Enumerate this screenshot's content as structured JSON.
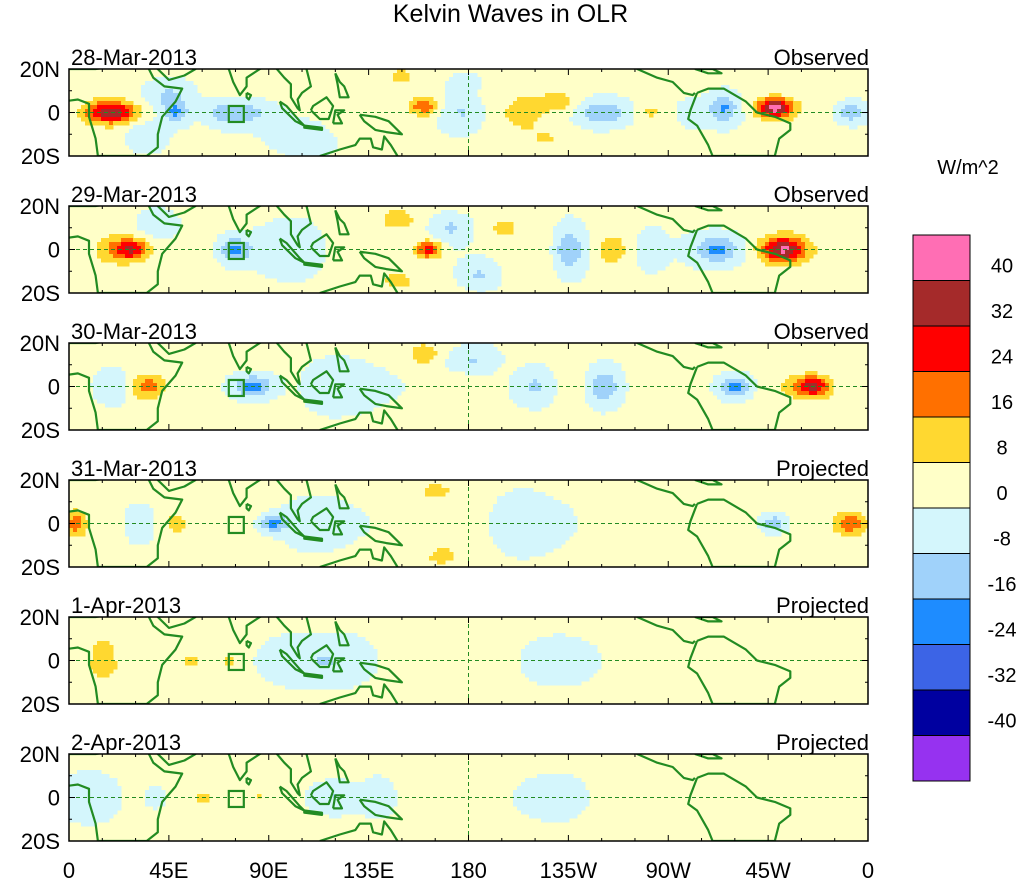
{
  "chart_data": {
    "type": "heatmap",
    "title": "Kelvin Waves in OLR",
    "xlabel": "",
    "ylabel": "",
    "x_range_deg_east": [
      0,
      360
    ],
    "y_range_deg": [
      -20,
      20
    ],
    "x_tick_labels": [
      "0",
      "45E",
      "90E",
      "135E",
      "180",
      "135W",
      "90W",
      "45W",
      "0"
    ],
    "y_tick_labels": [
      "20N",
      "0",
      "20S"
    ],
    "colorbar": {
      "unit": "W/m^2",
      "levels": [
        "40",
        "32",
        "24",
        "16",
        "8",
        "0",
        "-8",
        "-16",
        "-24",
        "-32",
        "-40"
      ],
      "colors": [
        "#ff6eb4",
        "#a52a2a",
        "#ff0000",
        "#ff7000",
        "#ffd830",
        "#ffffc8",
        "#d4f6fc",
        "#a0d2fa",
        "#1e8cff",
        "#3c64e6",
        "#0000a0",
        "#9632f0"
      ]
    },
    "panels": [
      {
        "date": "28-Mar-2013",
        "status": "Observed",
        "blobs": [
          {
            "lon": 20,
            "lat": 0,
            "sx": 10,
            "sy": 5,
            "v": 34
          },
          {
            "lon": 10,
            "lat": 0,
            "sx": 6,
            "sy": 6,
            "v": 9
          },
          {
            "lon": 35,
            "lat": -10,
            "sx": 8,
            "sy": 6,
            "v": -10
          },
          {
            "lon": 45,
            "lat": 8,
            "sx": 10,
            "sy": 6,
            "v": -11
          },
          {
            "lon": 48,
            "lat": 0,
            "sx": 6,
            "sy": 5,
            "v": -18
          },
          {
            "lon": 70,
            "lat": 0,
            "sx": 8,
            "sy": 5,
            "v": -13
          },
          {
            "lon": 82,
            "lat": 0,
            "sx": 10,
            "sy": 6,
            "v": -10
          },
          {
            "lon": 90,
            "lat": 12,
            "sx": 20,
            "sy": 6,
            "v": 4
          },
          {
            "lon": 105,
            "lat": -12,
            "sx": 14,
            "sy": 8,
            "v": -6
          },
          {
            "lon": 140,
            "lat": 0,
            "sx": 14,
            "sy": 12,
            "v": 4
          },
          {
            "lon": 150,
            "lat": 17,
            "sx": 6,
            "sy": 4,
            "v": 10
          },
          {
            "lon": 160,
            "lat": 3,
            "sx": 6,
            "sy": 4,
            "v": 22
          },
          {
            "lon": 178,
            "lat": 0,
            "sx": 10,
            "sy": 8,
            "v": -10
          },
          {
            "lon": 178,
            "lat": 14,
            "sx": 6,
            "sy": 4,
            "v": -8
          },
          {
            "lon": 192,
            "lat": 0,
            "sx": 12,
            "sy": 10,
            "v": 5
          },
          {
            "lon": 205,
            "lat": 0,
            "sx": 8,
            "sy": 8,
            "v": 10
          },
          {
            "lon": 220,
            "lat": 5,
            "sx": 10,
            "sy": 6,
            "v": 10
          },
          {
            "lon": 215,
            "lat": -12,
            "sx": 10,
            "sy": 6,
            "v": 7
          },
          {
            "lon": 240,
            "lat": 0,
            "sx": 12,
            "sy": 6,
            "v": -18
          },
          {
            "lon": 262,
            "lat": 0,
            "sx": 6,
            "sy": 4,
            "v": 8
          },
          {
            "lon": 282,
            "lat": 0,
            "sx": 8,
            "sy": 6,
            "v": -4
          },
          {
            "lon": 295,
            "lat": 2,
            "sx": 6,
            "sy": 6,
            "v": -18
          },
          {
            "lon": 318,
            "lat": 2,
            "sx": 8,
            "sy": 4.5,
            "v": 44
          },
          {
            "lon": 338,
            "lat": 0,
            "sx": 10,
            "sy": 10,
            "v": 4
          },
          {
            "lon": 352,
            "lat": 0,
            "sx": 8,
            "sy": 5,
            "v": -16
          }
        ]
      },
      {
        "date": "29-Mar-2013",
        "status": "Observed",
        "blobs": [
          {
            "lon": 28,
            "lat": 0,
            "sx": 8,
            "sy": 5,
            "v": 30
          },
          {
            "lon": 18,
            "lat": 0,
            "sx": 8,
            "sy": 8,
            "v": 8
          },
          {
            "lon": 40,
            "lat": 12,
            "sx": 8,
            "sy": 6,
            "v": -8
          },
          {
            "lon": 58,
            "lat": 0,
            "sx": 8,
            "sy": 8,
            "v": 5
          },
          {
            "lon": 75,
            "lat": 0,
            "sx": 7,
            "sy": 5,
            "v": -20
          },
          {
            "lon": 100,
            "lat": 0,
            "sx": 16,
            "sy": 12,
            "v": -7
          },
          {
            "lon": 148,
            "lat": 14,
            "sx": 8,
            "sy": 5,
            "v": 12
          },
          {
            "lon": 148,
            "lat": -14,
            "sx": 8,
            "sy": 5,
            "v": 10
          },
          {
            "lon": 162,
            "lat": 0,
            "sx": 6,
            "sy": 4,
            "v": 28
          },
          {
            "lon": 172,
            "lat": 10,
            "sx": 8,
            "sy": 6,
            "v": -10
          },
          {
            "lon": 185,
            "lat": -12,
            "sx": 8,
            "sy": 6,
            "v": -10
          },
          {
            "lon": 195,
            "lat": 10,
            "sx": 8,
            "sy": 6,
            "v": 8
          },
          {
            "lon": 210,
            "lat": 0,
            "sx": 12,
            "sy": 12,
            "v": 6
          },
          {
            "lon": 225,
            "lat": 0,
            "sx": 8,
            "sy": 10,
            "v": -18
          },
          {
            "lon": 245,
            "lat": 0,
            "sx": 8,
            "sy": 8,
            "v": 10
          },
          {
            "lon": 262,
            "lat": 0,
            "sx": 6,
            "sy": 8,
            "v": -8
          },
          {
            "lon": 292,
            "lat": 0,
            "sx": 10,
            "sy": 6,
            "v": -19
          },
          {
            "lon": 322,
            "lat": 0,
            "sx": 10,
            "sy": 6,
            "v": 39
          },
          {
            "lon": 345,
            "lat": 0,
            "sx": 8,
            "sy": 8,
            "v": 3
          }
        ]
      },
      {
        "date": "30-Mar-2013",
        "status": "Observed",
        "blobs": [
          {
            "lon": 35,
            "lat": 0,
            "sx": 8,
            "sy": 6,
            "v": 20
          },
          {
            "lon": 20,
            "lat": 0,
            "sx": 10,
            "sy": 8,
            "v": -6
          },
          {
            "lon": 55,
            "lat": 0,
            "sx": 10,
            "sy": 10,
            "v": 4
          },
          {
            "lon": 83,
            "lat": 0,
            "sx": 9,
            "sy": 5,
            "v": -22
          },
          {
            "lon": 120,
            "lat": 0,
            "sx": 18,
            "sy": 12,
            "v": -6
          },
          {
            "lon": 160,
            "lat": 15,
            "sx": 7,
            "sy": 5,
            "v": 12
          },
          {
            "lon": 175,
            "lat": 0,
            "sx": 8,
            "sy": 6,
            "v": 6
          },
          {
            "lon": 182,
            "lat": 12,
            "sx": 10,
            "sy": 6,
            "v": -10
          },
          {
            "lon": 210,
            "lat": 0,
            "sx": 10,
            "sy": 8,
            "v": -12
          },
          {
            "lon": 228,
            "lat": 0,
            "sx": 10,
            "sy": 10,
            "v": 5
          },
          {
            "lon": 240,
            "lat": 0,
            "sx": 8,
            "sy": 8,
            "v": -17
          },
          {
            "lon": 262,
            "lat": 0,
            "sx": 10,
            "sy": 10,
            "v": 5
          },
          {
            "lon": 300,
            "lat": 0,
            "sx": 7,
            "sy": 5,
            "v": -22
          },
          {
            "lon": 335,
            "lat": 0,
            "sx": 8,
            "sy": 5,
            "v": 33
          },
          {
            "lon": 322,
            "lat": 0,
            "sx": 8,
            "sy": 8,
            "v": 4
          }
        ]
      },
      {
        "date": "31-Mar-2013",
        "status": "Projected",
        "blobs": [
          {
            "lon": 3,
            "lat": 0,
            "sx": 5,
            "sy": 6,
            "v": 20
          },
          {
            "lon": 20,
            "lat": 0,
            "sx": 10,
            "sy": 8,
            "v": 4
          },
          {
            "lon": 30,
            "lat": 0,
            "sx": 8,
            "sy": 8,
            "v": -5
          },
          {
            "lon": 48,
            "lat": 0,
            "sx": 7,
            "sy": 6,
            "v": 10
          },
          {
            "lon": 92,
            "lat": 0,
            "sx": 6,
            "sy": 4,
            "v": -20
          },
          {
            "lon": 110,
            "lat": 0,
            "sx": 14,
            "sy": 10,
            "v": -9
          },
          {
            "lon": 165,
            "lat": 15,
            "sx": 8,
            "sy": 4,
            "v": 10
          },
          {
            "lon": 168,
            "lat": -15,
            "sx": 7,
            "sy": 4,
            "v": 11
          },
          {
            "lon": 175,
            "lat": 0,
            "sx": 10,
            "sy": 10,
            "v": 4
          },
          {
            "lon": 205,
            "lat": 0,
            "sx": 16,
            "sy": 12,
            "v": -8
          },
          {
            "lon": 248,
            "lat": 0,
            "sx": 10,
            "sy": 8,
            "v": 6
          },
          {
            "lon": 270,
            "lat": 0,
            "sx": 8,
            "sy": 12,
            "v": 3
          },
          {
            "lon": 318,
            "lat": 0,
            "sx": 6,
            "sy": 4,
            "v": -16
          },
          {
            "lon": 352,
            "lat": 0,
            "sx": 8,
            "sy": 6,
            "v": 21
          },
          {
            "lon": 330,
            "lat": 0,
            "sx": 8,
            "sy": 8,
            "v": 5
          }
        ]
      },
      {
        "date": "1-Apr-2013",
        "status": "Projected",
        "blobs": [
          {
            "lon": 15,
            "lat": -3,
            "sx": 10,
            "sy": 8,
            "v": 10
          },
          {
            "lon": 15,
            "lat": 8,
            "sx": 12,
            "sy": 6,
            "v": 6
          },
          {
            "lon": 35,
            "lat": 0,
            "sx": 10,
            "sy": 10,
            "v": 3
          },
          {
            "lon": 55,
            "lat": 0,
            "sx": 4,
            "sy": 3,
            "v": 8
          },
          {
            "lon": 72,
            "lat": 0,
            "sx": 4,
            "sy": 3,
            "v": 8
          },
          {
            "lon": 100,
            "lat": 0,
            "sx": 16,
            "sy": 10,
            "v": -6
          },
          {
            "lon": 120,
            "lat": 0,
            "sx": 14,
            "sy": 10,
            "v": -7
          },
          {
            "lon": 170,
            "lat": 0,
            "sx": 12,
            "sy": 12,
            "v": 4
          },
          {
            "lon": 220,
            "lat": 0,
            "sx": 14,
            "sy": 10,
            "v": -5
          },
          {
            "lon": 270,
            "lat": 0,
            "sx": 12,
            "sy": 10,
            "v": 3
          },
          {
            "lon": 310,
            "lat": 0,
            "sx": 14,
            "sy": 10,
            "v": 3
          }
        ]
      },
      {
        "date": "2-Apr-2013",
        "status": "Projected",
        "blobs": [
          {
            "lon": 10,
            "lat": 0,
            "sx": 14,
            "sy": 12,
            "v": -4
          },
          {
            "lon": 40,
            "lat": 0,
            "sx": 10,
            "sy": 10,
            "v": -3
          },
          {
            "lon": 60,
            "lat": 0,
            "sx": 4,
            "sy": 3,
            "v": 9
          },
          {
            "lon": 85,
            "lat": 0,
            "sx": 4,
            "sy": 3,
            "v": 8
          },
          {
            "lon": 120,
            "lat": 0,
            "sx": 8,
            "sy": 6,
            "v": -9
          },
          {
            "lon": 140,
            "lat": 0,
            "sx": 10,
            "sy": 10,
            "v": -5
          },
          {
            "lon": 170,
            "lat": 0,
            "sx": 14,
            "sy": 12,
            "v": 3
          },
          {
            "lon": 220,
            "lat": 0,
            "sx": 14,
            "sy": 10,
            "v": -4
          },
          {
            "lon": 265,
            "lat": 0,
            "sx": 14,
            "sy": 10,
            "v": 3
          },
          {
            "lon": 320,
            "lat": 0,
            "sx": 14,
            "sy": 10,
            "v": 3
          }
        ]
      }
    ]
  },
  "colors": {
    "coast": "#228b22",
    "axis": "#000000",
    "background": "#ffffff"
  }
}
